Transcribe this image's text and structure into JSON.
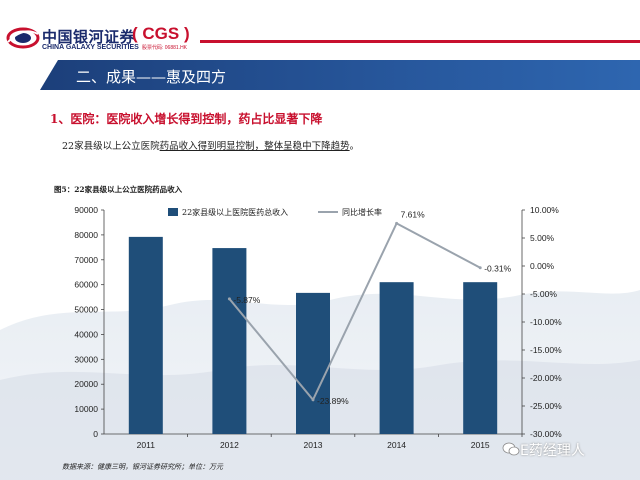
{
  "header": {
    "logo_cn": "中国银河证券",
    "logo_en": "CHINA GALAXY SECURITIES",
    "logo_cgs": "( CGS )",
    "logo_code": "股票代码: 06881.HK"
  },
  "banner": {
    "title": "二、成果——惠及四方"
  },
  "subtitle": "1、医院：医院收入增长得到控制，药占比显著下降",
  "description": {
    "prefix": "22家县级以上公立医院",
    "underlined": "药品收入得到明显控制，整体呈稳中下降趋势",
    "suffix": "。"
  },
  "figure_title": "图5：22家县级以上公立医院药品收入",
  "source": "数据来源：健康三明，银河证券研究所；单位：万元",
  "watermark": "E药经理人",
  "colors": {
    "bar": "#1f4e79",
    "line": "#9aa3ad",
    "accent_red": "#c8102e",
    "banner": "#27579c"
  },
  "chart_data": {
    "type": "bar",
    "categories": [
      "2011",
      "2012",
      "2013",
      "2014",
      "2015"
    ],
    "series": [
      {
        "name": "22家县级以上医院医药总收入",
        "type": "bar",
        "axis": "left",
        "values": [
          79200,
          74700,
          56700,
          61000,
          61000
        ]
      },
      {
        "name": "同比增长率",
        "type": "line",
        "axis": "right",
        "values": [
          null,
          -5.87,
          -23.89,
          7.61,
          -0.31
        ]
      }
    ],
    "data_labels": [
      "",
      "-5.87%",
      "-23.89%",
      "7.61%",
      "-0.31%"
    ],
    "y_left": {
      "ylim": [
        0,
        90000
      ],
      "ticks": [
        "0",
        "10000",
        "20000",
        "30000",
        "40000",
        "50000",
        "60000",
        "70000",
        "80000",
        "90000"
      ]
    },
    "y_right": {
      "ylim": [
        -30,
        10
      ],
      "ticks": [
        "-30.00%",
        "-25.00%",
        "-20.00%",
        "-15.00%",
        "-10.00%",
        "-5.00%",
        "0.00%",
        "5.00%",
        "10.00%"
      ]
    },
    "legend": {
      "placement": "top",
      "labels": [
        "22家县级以上医院医药总收入",
        "同比增长率"
      ]
    }
  }
}
